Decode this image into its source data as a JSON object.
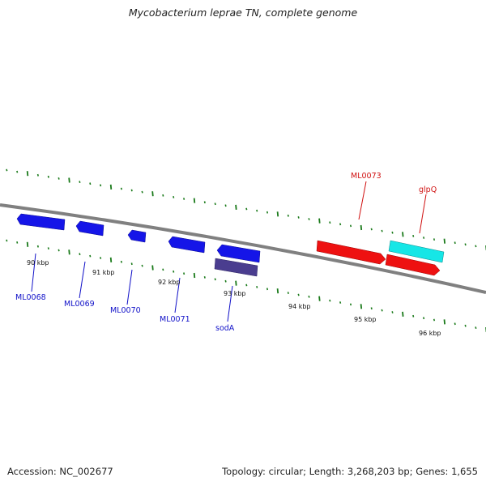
{
  "title": "Mycobacterium leprae TN, complete genome",
  "footer": {
    "accession": "Accession: NC_002677",
    "summary": "Topology: circular; Length: 3,268,203 bp; Genes: 1,655"
  },
  "colors": {
    "backbone": "#808080",
    "tick": "#1a7a1a",
    "blue_gene": "#1515e8",
    "purple_gene": "#4a3d8f",
    "red_gene": "#ee1111",
    "cyan_gene": "#16e6e6",
    "blue_label": "#1010c8",
    "red_label": "#d01010"
  },
  "kbp_labels": [
    "90 kbp",
    "91 kbp",
    "92 kbp",
    "93 kbp",
    "94 kbp",
    "95 kbp",
    "96 kbp"
  ],
  "gene_labels": [
    {
      "id": "ML0068",
      "text": "ML0068",
      "color": "blue"
    },
    {
      "id": "ML0069",
      "text": "ML0069",
      "color": "blue"
    },
    {
      "id": "ML0070",
      "text": "ML0070",
      "color": "blue"
    },
    {
      "id": "ML0071",
      "text": "ML0071",
      "color": "blue"
    },
    {
      "id": "sodA",
      "text": "sodA",
      "color": "blue"
    },
    {
      "id": "ML0073",
      "text": "ML0073",
      "color": "red"
    },
    {
      "id": "glpQ",
      "text": "glpQ",
      "color": "red"
    }
  ]
}
